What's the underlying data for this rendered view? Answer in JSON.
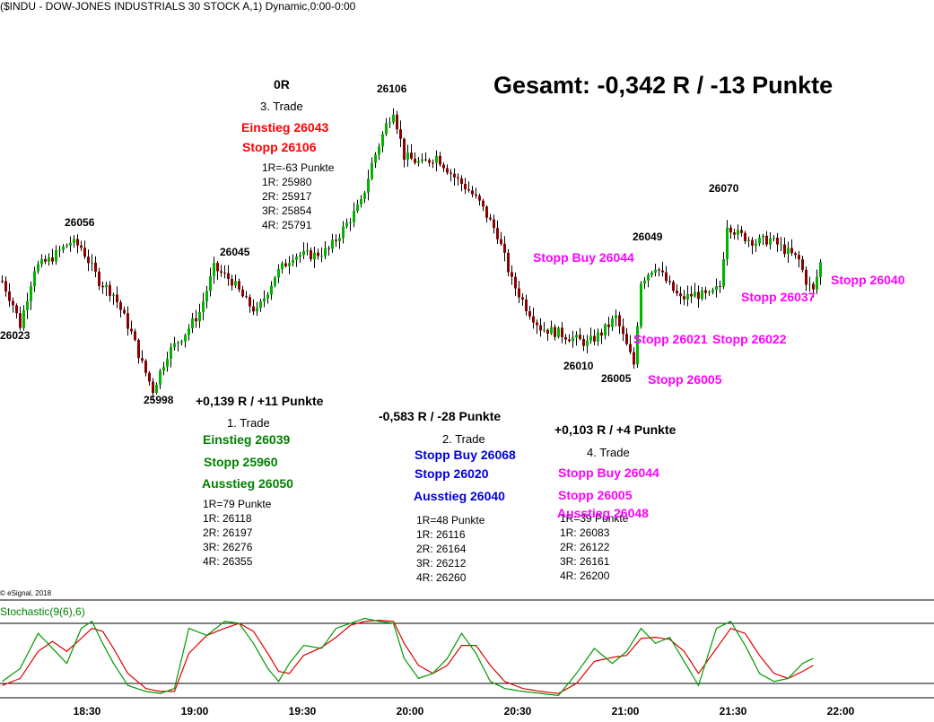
{
  "header": {
    "title": "($INDU - DOW-JONES INDUSTRIALS 30 STOCK A,1) Dynamic,0:00-0:00"
  },
  "summary": {
    "text": "Gesamt: -0,342 R / -13 Punkte"
  },
  "copyright": "© eSignal, 2018",
  "colors": {
    "up_body": "#00b400",
    "down_body": "#8b0000",
    "wick": "#000000",
    "stoch_k": "#009900",
    "stoch_d": "#dd0000",
    "red": "#ff0000",
    "green": "#008000",
    "blue": "#0000dd",
    "magenta": "#ff00ff",
    "black": "#000000"
  },
  "price_labels": [
    "26023",
    "26056",
    "25998",
    "26045",
    "26106",
    "26010",
    "26005",
    "26049",
    "26070"
  ],
  "trades": {
    "t1": {
      "result": "+0,139 R / +11 Punkte",
      "name": "1. Trade",
      "entry": "Einstieg 26039",
      "stop": "Stopp 25960",
      "exit": "Ausstieg 26050",
      "levels": [
        "1R=79 Punkte",
        "1R: 26118",
        "2R: 26197",
        "3R: 26276",
        "4R: 26355"
      ]
    },
    "t2": {
      "result": "-0,583 R / -28 Punkte",
      "name": "2. Trade",
      "entry": "Stopp Buy 26068",
      "stop": "Stopp 26020",
      "exit": "Ausstieg 26040",
      "levels": [
        "1R=48 Punkte",
        "1R: 26116",
        "2R: 26164",
        "3R: 26212",
        "4R: 26260"
      ]
    },
    "t3": {
      "result": "0R",
      "name": "3. Trade",
      "entry": "Einstieg 26043",
      "stop": "Stopp 26106",
      "levels": [
        "1R=-63 Punkte",
        "1R: 25980",
        "2R: 25917",
        "3R: 25854",
        "4R: 25791"
      ]
    },
    "t4": {
      "result": "+0,103 R / +4 Punkte",
      "name": "4. Trade",
      "entry": "Stopp Buy 26044",
      "stop": "Stopp 26005",
      "exit": "Ausstieg 26048",
      "levels": [
        "1R=39 Punkte",
        "1R: 26083",
        "2R: 26122",
        "3R: 26161",
        "4R: 26200"
      ]
    }
  },
  "chart_annotations": {
    "stopp_buy": "Stopp Buy 26044",
    "stopp_26021": "Stopp 26021",
    "stopp_26022": "Stopp 26022",
    "stopp_26005": "Stopp 26005",
    "stopp_26037": "Stopp 26037",
    "stopp_26040": "Stopp 26040"
  },
  "chart_data": {
    "type": "candlestick",
    "x_ticks": [
      "18:30",
      "19:00",
      "19:30",
      "20:00",
      "20:30",
      "21:00",
      "21:30",
      "22:00"
    ],
    "anchors": [
      [
        0,
        26040
      ],
      [
        3,
        26031
      ],
      [
        5,
        26023
      ],
      [
        9,
        26045
      ],
      [
        13,
        26048
      ],
      [
        19,
        26055
      ],
      [
        22,
        26053
      ],
      [
        27,
        26040
      ],
      [
        31,
        26035
      ],
      [
        36,
        26020
      ],
      [
        39,
        26008
      ],
      [
        42,
        25998
      ],
      [
        46,
        26012
      ],
      [
        51,
        26020
      ],
      [
        55,
        26028
      ],
      [
        59,
        26045
      ],
      [
        64,
        26040
      ],
      [
        68,
        26032
      ],
      [
        71,
        26028
      ],
      [
        76,
        26042
      ],
      [
        81,
        26050
      ],
      [
        87,
        26050
      ],
      [
        91,
        26052
      ],
      [
        95,
        26060
      ],
      [
        100,
        26070
      ],
      [
        103,
        26085
      ],
      [
        107,
        26100
      ],
      [
        109,
        26106
      ],
      [
        112,
        26088
      ],
      [
        117,
        26085
      ],
      [
        121,
        26088
      ],
      [
        126,
        26080
      ],
      [
        130,
        26075
      ],
      [
        133,
        26070
      ],
      [
        138,
        26058
      ],
      [
        142,
        26040
      ],
      [
        146,
        26030
      ],
      [
        150,
        26022
      ],
      [
        155,
        26020
      ],
      [
        159,
        26018
      ],
      [
        163,
        26016
      ],
      [
        167,
        26020
      ],
      [
        171,
        26026
      ],
      [
        174,
        26015
      ],
      [
        176,
        26008
      ],
      [
        178,
        26040
      ],
      [
        182,
        26046
      ],
      [
        186,
        26038
      ],
      [
        189,
        26033
      ],
      [
        193,
        26035
      ],
      [
        197,
        26034
      ],
      [
        200,
        26038
      ],
      [
        202,
        26062
      ],
      [
        205,
        26058
      ],
      [
        210,
        26055
      ],
      [
        214,
        26056
      ],
      [
        218,
        26052
      ],
      [
        222,
        26048
      ],
      [
        224,
        26040
      ],
      [
        226,
        26036
      ],
      [
        228,
        26047
      ]
    ],
    "stochastic": {
      "label": "Stochastic(9(6),6)",
      "upper": 80,
      "lower": 20,
      "range": [
        0,
        100
      ],
      "k": [
        [
          0,
          22
        ],
        [
          5,
          35
        ],
        [
          10,
          70
        ],
        [
          14,
          55
        ],
        [
          18,
          40
        ],
        [
          22,
          75
        ],
        [
          25,
          82
        ],
        [
          28,
          60
        ],
        [
          31,
          40
        ],
        [
          35,
          18
        ],
        [
          40,
          12
        ],
        [
          44,
          10
        ],
        [
          48,
          15
        ],
        [
          52,
          75
        ],
        [
          57,
          68
        ],
        [
          62,
          82
        ],
        [
          66,
          80
        ],
        [
          70,
          60
        ],
        [
          74,
          35
        ],
        [
          77,
          22
        ],
        [
          80,
          40
        ],
        [
          84,
          58
        ],
        [
          89,
          55
        ],
        [
          93,
          75
        ],
        [
          97,
          80
        ],
        [
          101,
          85
        ],
        [
          105,
          82
        ],
        [
          109,
          80
        ],
        [
          112,
          45
        ],
        [
          116,
          25
        ],
        [
          120,
          30
        ],
        [
          124,
          45
        ],
        [
          128,
          70
        ],
        [
          132,
          50
        ],
        [
          136,
          22
        ],
        [
          140,
          15
        ],
        [
          145,
          12
        ],
        [
          150,
          10
        ],
        [
          155,
          8
        ],
        [
          160,
          30
        ],
        [
          165,
          55
        ],
        [
          170,
          40
        ],
        [
          174,
          52
        ],
        [
          178,
          75
        ],
        [
          182,
          60
        ],
        [
          186,
          66
        ],
        [
          190,
          42
        ],
        [
          194,
          18
        ],
        [
          199,
          75
        ],
        [
          203,
          82
        ],
        [
          207,
          58
        ],
        [
          211,
          30
        ],
        [
          215,
          22
        ],
        [
          219,
          25
        ],
        [
          223,
          40
        ],
        [
          226,
          45
        ]
      ],
      "d": [
        [
          0,
          18
        ],
        [
          5,
          25
        ],
        [
          10,
          52
        ],
        [
          14,
          62
        ],
        [
          18,
          52
        ],
        [
          22,
          65
        ],
        [
          25,
          75
        ],
        [
          28,
          72
        ],
        [
          31,
          55
        ],
        [
          35,
          30
        ],
        [
          40,
          15
        ],
        [
          44,
          12
        ],
        [
          48,
          12
        ],
        [
          52,
          50
        ],
        [
          57,
          68
        ],
        [
          62,
          75
        ],
        [
          66,
          80
        ],
        [
          70,
          72
        ],
        [
          74,
          50
        ],
        [
          77,
          32
        ],
        [
          80,
          30
        ],
        [
          84,
          48
        ],
        [
          89,
          56
        ],
        [
          93,
          66
        ],
        [
          97,
          78
        ],
        [
          101,
          82
        ],
        [
          105,
          83
        ],
        [
          109,
          82
        ],
        [
          112,
          60
        ],
        [
          116,
          38
        ],
        [
          120,
          30
        ],
        [
          124,
          38
        ],
        [
          128,
          58
        ],
        [
          132,
          58
        ],
        [
          136,
          38
        ],
        [
          140,
          22
        ],
        [
          145,
          15
        ],
        [
          150,
          12
        ],
        [
          155,
          10
        ],
        [
          160,
          20
        ],
        [
          165,
          42
        ],
        [
          170,
          46
        ],
        [
          174,
          48
        ],
        [
          178,
          65
        ],
        [
          182,
          66
        ],
        [
          186,
          64
        ],
        [
          190,
          52
        ],
        [
          194,
          30
        ],
        [
          199,
          55
        ],
        [
          203,
          75
        ],
        [
          207,
          70
        ],
        [
          211,
          48
        ],
        [
          215,
          30
        ],
        [
          219,
          25
        ],
        [
          223,
          32
        ],
        [
          226,
          38
        ]
      ]
    }
  }
}
